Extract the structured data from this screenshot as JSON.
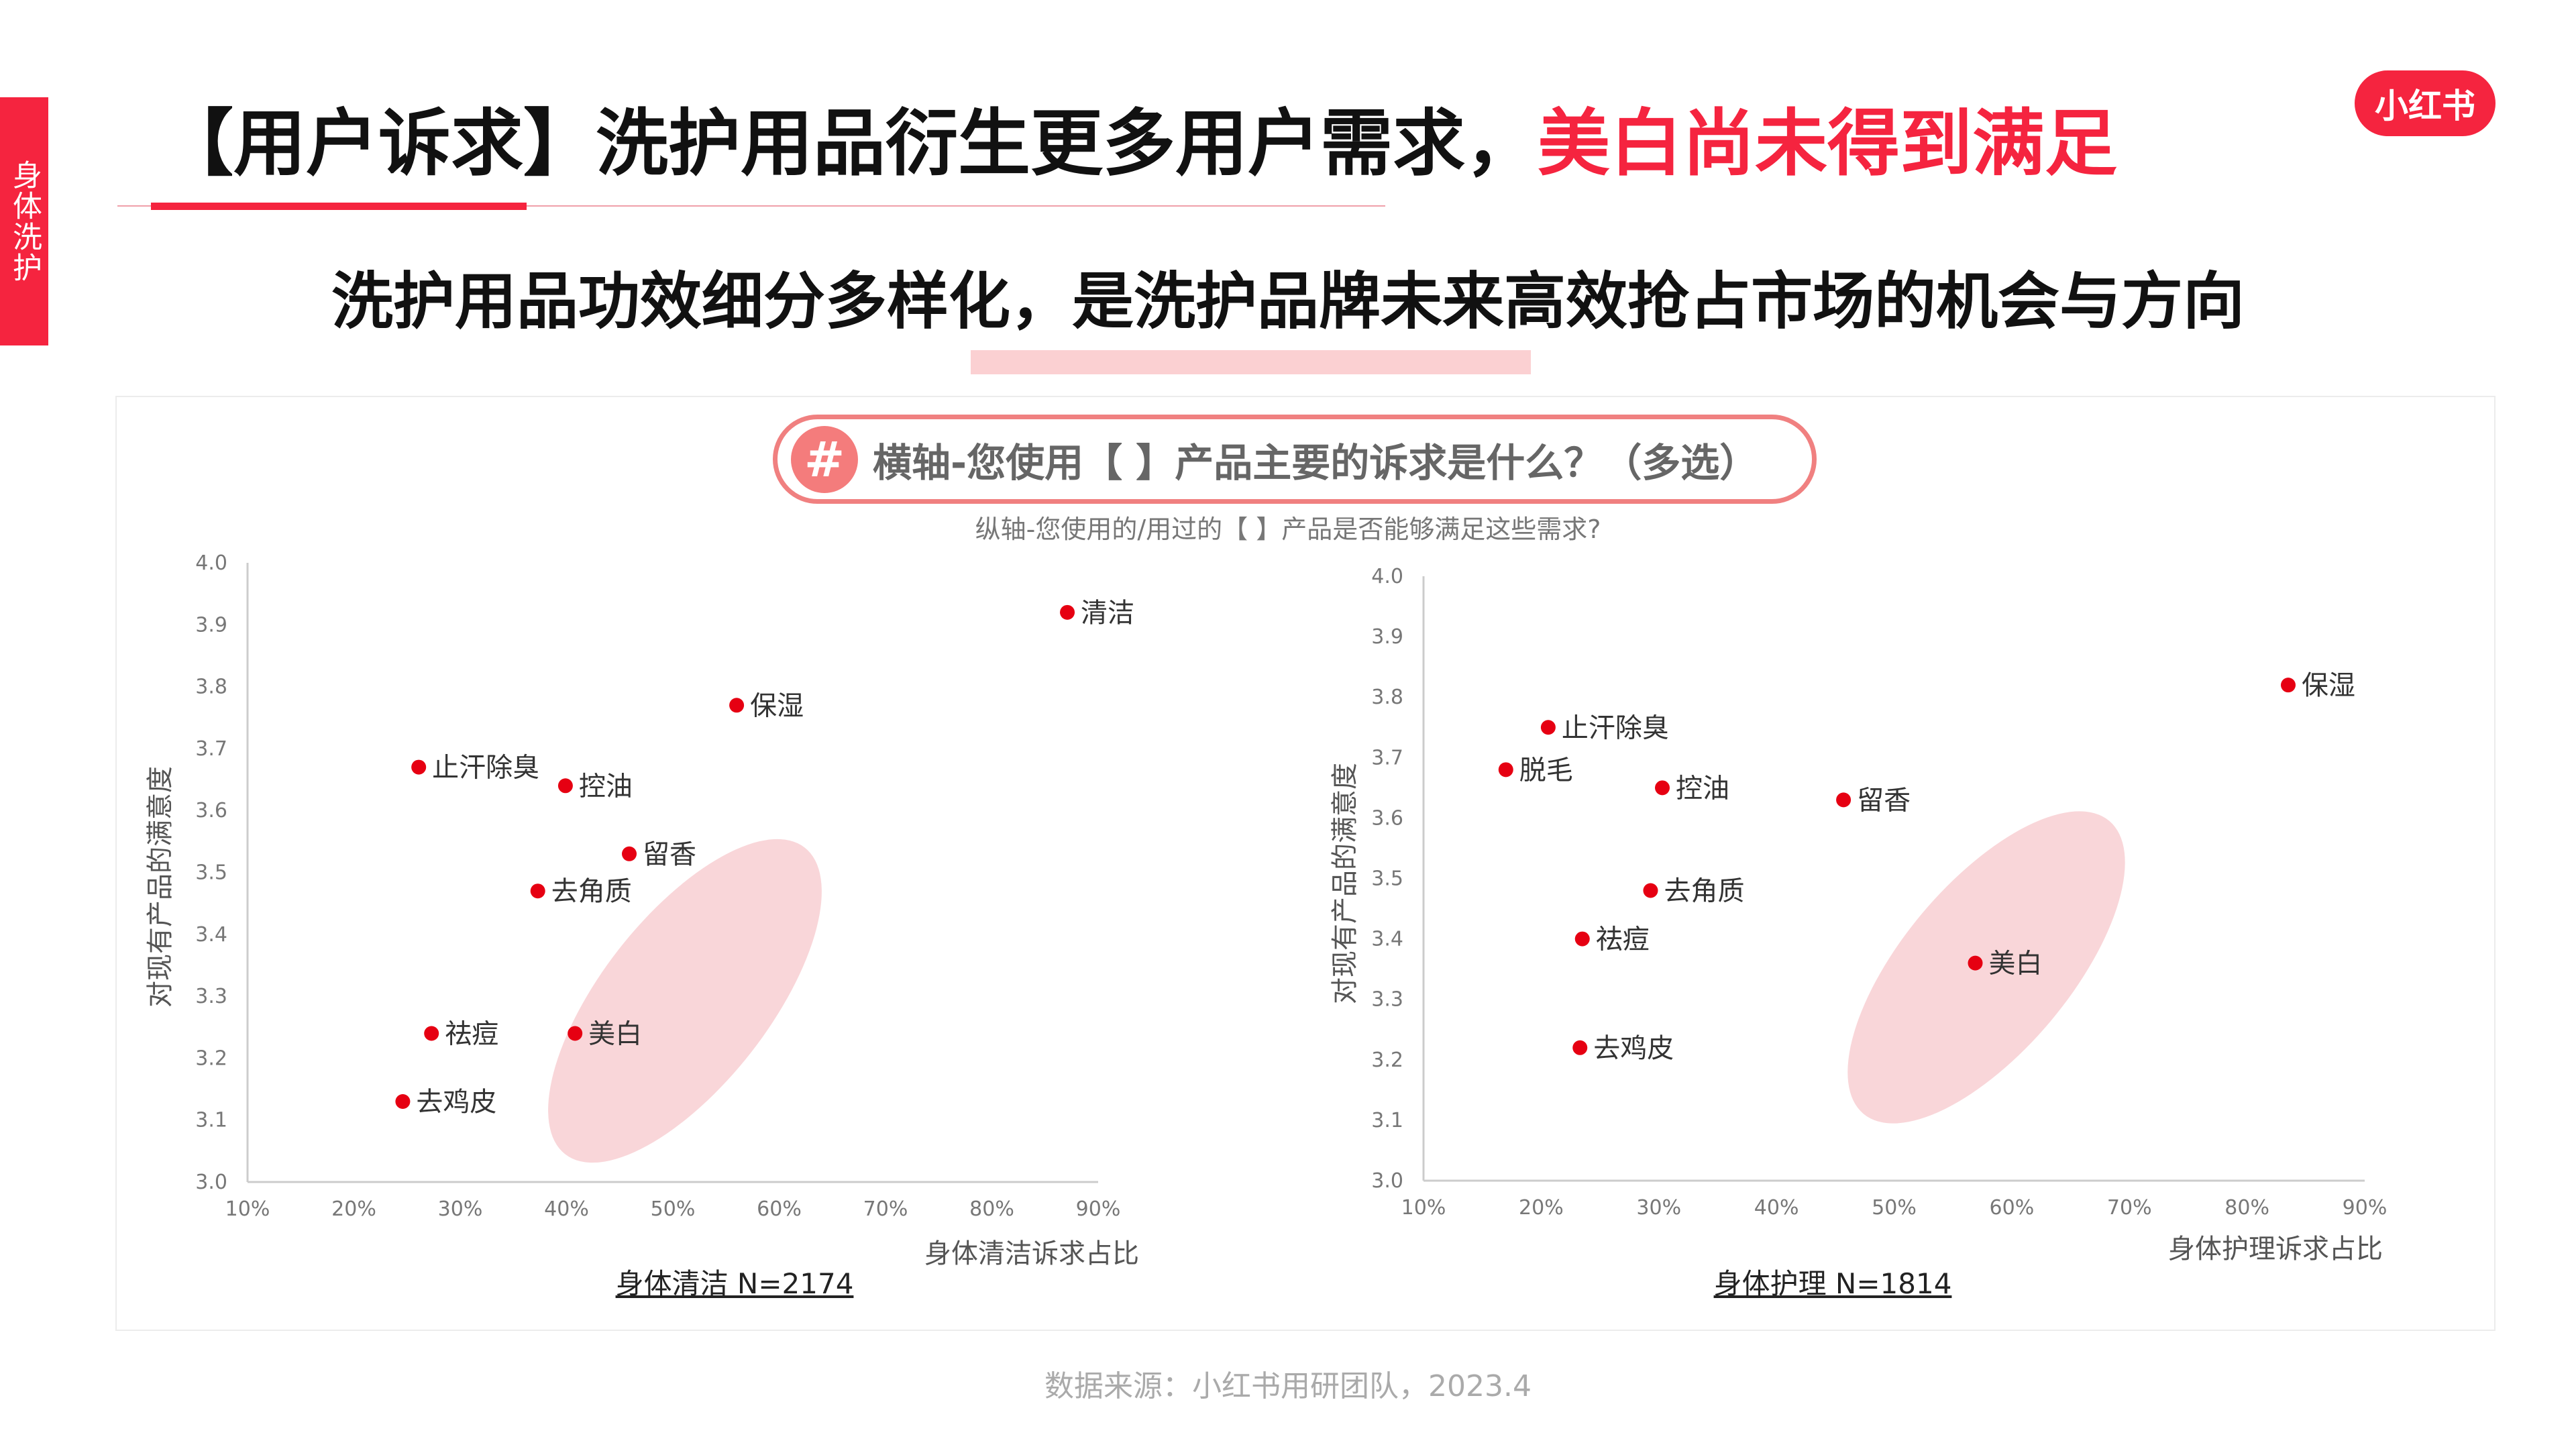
{
  "side_tab": "身体洗护",
  "title": {
    "prefix": "【用户诉求】洗护用品衍生更多用户需求，",
    "highlight": "美白尚未得到满足"
  },
  "logo": "小红书",
  "subtitle": "洗护用品功效细分多样化，是洗护品牌未来高效抢占市场的机会与方向",
  "question": {
    "hash": "#",
    "x_question": "横轴-您使用【 】产品主要的诉求是什么？（多选）",
    "y_question": "纵轴-您使用的/用过的【 】产品是否能够满足这些需求?"
  },
  "footer": "数据来源：小红书用研团队，2023.4",
  "colors": {
    "accent": "#f5243f",
    "point": "#e60012",
    "highlight_ellipse": "#f9d6d9"
  },
  "chart_data": [
    {
      "type": "scatter",
      "caption": "身体清洁 N=2174",
      "xlabel": "身体清洁诉求占比",
      "ylabel": "对现有产品的满意度",
      "xlim": [
        10,
        90
      ],
      "ylim": [
        3.0,
        4.0
      ],
      "xticks": [
        "10%",
        "20%",
        "30%",
        "40%",
        "50%",
        "60%",
        "70%",
        "80%",
        "90%"
      ],
      "yticks": [
        "3.0",
        "3.1",
        "3.2",
        "3.3",
        "3.4",
        "3.5",
        "3.6",
        "3.7",
        "3.8",
        "3.9",
        "4.0"
      ],
      "grid": false,
      "highlight": "美白",
      "points": [
        {
          "name": "清洁",
          "x": 87.1,
          "y": 3.92
        },
        {
          "name": "保湿",
          "x": 56.0,
          "y": 3.77
        },
        {
          "name": "止汗除臭",
          "x": 26.1,
          "y": 3.67
        },
        {
          "name": "控油",
          "x": 39.9,
          "y": 3.64
        },
        {
          "name": "留香",
          "x": 45.9,
          "y": 3.53
        },
        {
          "name": "去角质",
          "x": 37.3,
          "y": 3.47
        },
        {
          "name": "祛痘",
          "x": 27.3,
          "y": 3.24
        },
        {
          "name": "美白",
          "x": 40.8,
          "y": 3.24
        },
        {
          "name": "去鸡皮",
          "x": 24.6,
          "y": 3.13
        }
      ]
    },
    {
      "type": "scatter",
      "caption": "身体护理 N=1814",
      "xlabel": "身体护理诉求占比",
      "ylabel": "对现有产品的满意度",
      "xlim": [
        10,
        90
      ],
      "ylim": [
        3.0,
        4.0
      ],
      "xticks": [
        "10%",
        "20%",
        "30%",
        "40%",
        "50%",
        "60%",
        "70%",
        "80%",
        "90%"
      ],
      "yticks": [
        "3.0",
        "3.1",
        "3.2",
        "3.3",
        "3.4",
        "3.5",
        "3.6",
        "3.7",
        "3.8",
        "3.9",
        "4.0"
      ],
      "grid": false,
      "highlight": "美白",
      "points": [
        {
          "name": "保湿",
          "x": 83.5,
          "y": 3.82
        },
        {
          "name": "止汗除臭",
          "x": 20.6,
          "y": 3.75
        },
        {
          "name": "脱毛",
          "x": 17.0,
          "y": 3.68
        },
        {
          "name": "控油",
          "x": 30.3,
          "y": 3.65
        },
        {
          "name": "留香",
          "x": 45.7,
          "y": 3.63
        },
        {
          "name": "去角质",
          "x": 29.3,
          "y": 3.48
        },
        {
          "name": "祛痘",
          "x": 23.5,
          "y": 3.4
        },
        {
          "name": "美白",
          "x": 56.9,
          "y": 3.36
        },
        {
          "name": "去鸡皮",
          "x": 23.3,
          "y": 3.22
        }
      ]
    }
  ]
}
